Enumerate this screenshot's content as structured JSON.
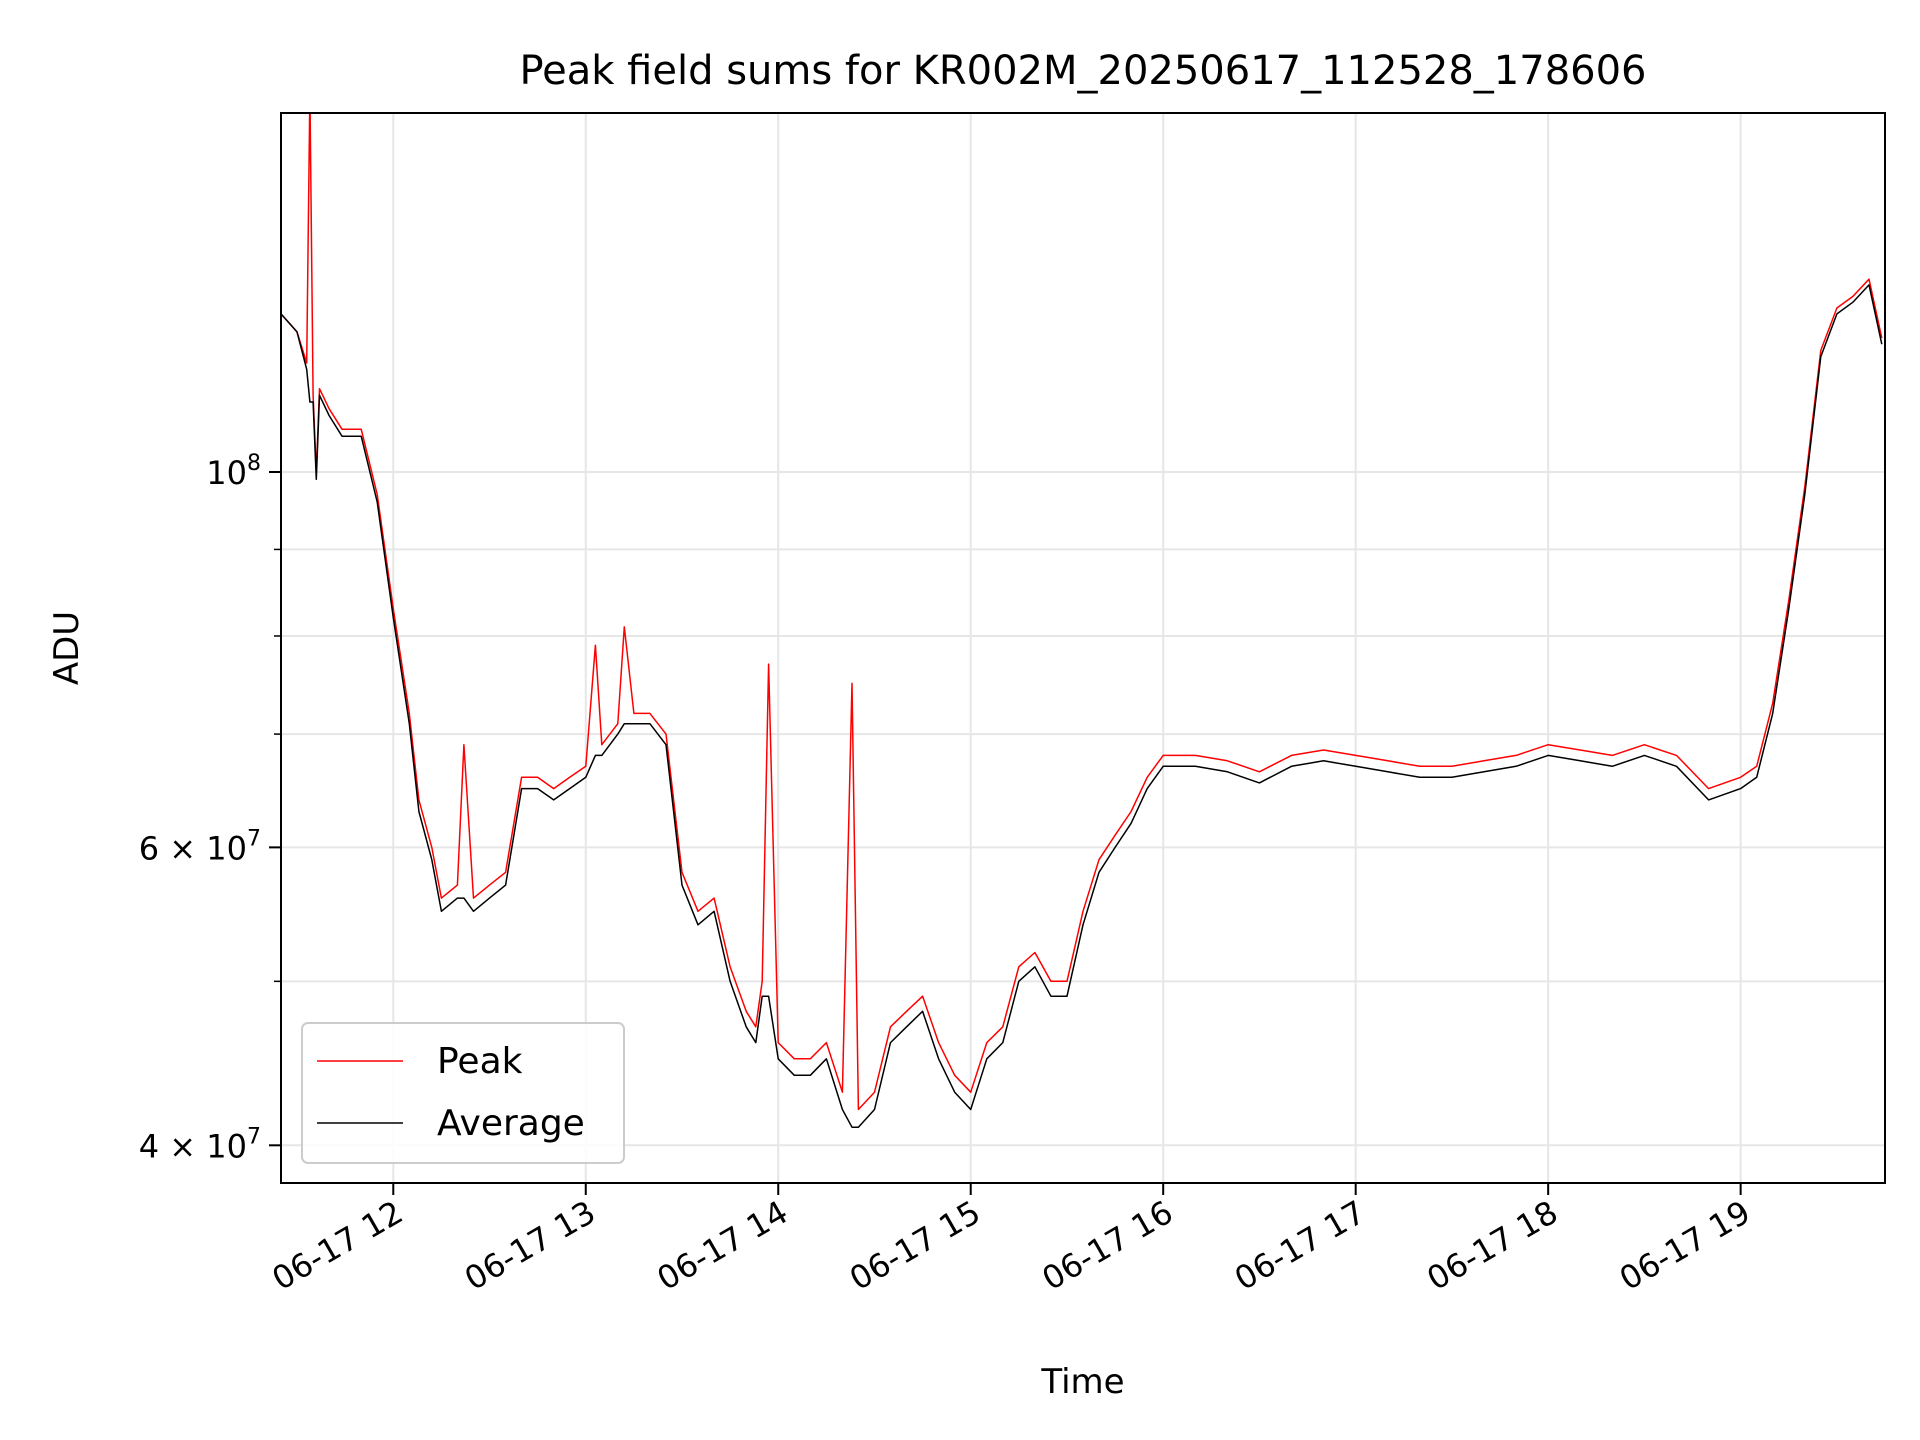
{
  "chart_data": {
    "type": "line",
    "title": "Peak field sums for KR002M_20250617_112528_178606",
    "xlabel": "Time",
    "ylabel": "ADU",
    "y_scale": "log",
    "grid": true,
    "legend_position": "lower-left",
    "xlim": [
      "2025-06-17T11:25",
      "2025-06-17T19:45"
    ],
    "ylim": [
      38000000,
      163000000
    ],
    "x_ticks": [
      {
        "time": "2025-06-17T12:00",
        "label": "06-17 12"
      },
      {
        "time": "2025-06-17T13:00",
        "label": "06-17 13"
      },
      {
        "time": "2025-06-17T14:00",
        "label": "06-17 14"
      },
      {
        "time": "2025-06-17T15:00",
        "label": "06-17 15"
      },
      {
        "time": "2025-06-17T16:00",
        "label": "06-17 16"
      },
      {
        "time": "2025-06-17T17:00",
        "label": "06-17 17"
      },
      {
        "time": "2025-06-17T18:00",
        "label": "06-17 18"
      },
      {
        "time": "2025-06-17T19:00",
        "label": "06-17 19"
      }
    ],
    "y_major_ticks": [
      {
        "value": 100000000,
        "base": "10",
        "exp": "8"
      },
      {
        "value": 60000000,
        "base": "6 × 10",
        "exp": "7"
      },
      {
        "value": 40000000,
        "base": "4 × 10",
        "exp": "7"
      }
    ],
    "y_minor_ticks": [
      50000000,
      70000000,
      80000000,
      90000000
    ],
    "series": [
      {
        "name": "Peak",
        "color": "#ff0000",
        "points": [
          [
            "2025-06-17T11:25",
            124000000
          ],
          [
            "2025-06-17T11:30",
            121000000
          ],
          [
            "2025-06-17T11:33",
            116000000
          ],
          [
            "2025-06-17T11:34",
            168000000
          ],
          [
            "2025-06-17T11:35",
            111000000
          ],
          [
            "2025-06-17T11:36",
            100000000
          ],
          [
            "2025-06-17T11:37",
            112000000
          ],
          [
            "2025-06-17T11:40",
            109000000
          ],
          [
            "2025-06-17T11:44",
            106000000
          ],
          [
            "2025-06-17T11:50",
            106000000
          ],
          [
            "2025-06-17T11:55",
            97000000
          ],
          [
            "2025-06-17T12:00",
            83000000
          ],
          [
            "2025-06-17T12:05",
            72000000
          ],
          [
            "2025-06-17T12:08",
            64000000
          ],
          [
            "2025-06-17T12:12",
            60000000
          ],
          [
            "2025-06-17T12:15",
            56000000
          ],
          [
            "2025-06-17T12:20",
            57000000
          ],
          [
            "2025-06-17T12:22",
            69000000
          ],
          [
            "2025-06-17T12:25",
            56000000
          ],
          [
            "2025-06-17T12:30",
            57000000
          ],
          [
            "2025-06-17T12:35",
            58000000
          ],
          [
            "2025-06-17T12:40",
            66000000
          ],
          [
            "2025-06-17T12:45",
            66000000
          ],
          [
            "2025-06-17T12:50",
            65000000
          ],
          [
            "2025-06-17T12:55",
            66000000
          ],
          [
            "2025-06-17T13:00",
            67000000
          ],
          [
            "2025-06-17T13:03",
            79000000
          ],
          [
            "2025-06-17T13:05",
            69000000
          ],
          [
            "2025-06-17T13:10",
            71000000
          ],
          [
            "2025-06-17T13:12",
            81000000
          ],
          [
            "2025-06-17T13:15",
            72000000
          ],
          [
            "2025-06-17T13:20",
            72000000
          ],
          [
            "2025-06-17T13:25",
            70000000
          ],
          [
            "2025-06-17T13:30",
            58000000
          ],
          [
            "2025-06-17T13:35",
            55000000
          ],
          [
            "2025-06-17T13:40",
            56000000
          ],
          [
            "2025-06-17T13:45",
            51000000
          ],
          [
            "2025-06-17T13:50",
            48000000
          ],
          [
            "2025-06-17T13:53",
            47000000
          ],
          [
            "2025-06-17T13:55",
            50000000
          ],
          [
            "2025-06-17T13:57",
            77000000
          ],
          [
            "2025-06-17T14:00",
            46000000
          ],
          [
            "2025-06-17T14:05",
            45000000
          ],
          [
            "2025-06-17T14:10",
            45000000
          ],
          [
            "2025-06-17T14:15",
            46000000
          ],
          [
            "2025-06-17T14:20",
            43000000
          ],
          [
            "2025-06-17T14:23",
            75000000
          ],
          [
            "2025-06-17T14:25",
            42000000
          ],
          [
            "2025-06-17T14:30",
            43000000
          ],
          [
            "2025-06-17T14:35",
            47000000
          ],
          [
            "2025-06-17T14:40",
            48000000
          ],
          [
            "2025-06-17T14:45",
            49000000
          ],
          [
            "2025-06-17T14:50",
            46000000
          ],
          [
            "2025-06-17T14:55",
            44000000
          ],
          [
            "2025-06-17T15:00",
            43000000
          ],
          [
            "2025-06-17T15:05",
            46000000
          ],
          [
            "2025-06-17T15:10",
            47000000
          ],
          [
            "2025-06-17T15:15",
            51000000
          ],
          [
            "2025-06-17T15:20",
            52000000
          ],
          [
            "2025-06-17T15:25",
            50000000
          ],
          [
            "2025-06-17T15:30",
            50000000
          ],
          [
            "2025-06-17T15:35",
            55000000
          ],
          [
            "2025-06-17T15:40",
            59000000
          ],
          [
            "2025-06-17T15:45",
            61000000
          ],
          [
            "2025-06-17T15:50",
            63000000
          ],
          [
            "2025-06-17T15:55",
            66000000
          ],
          [
            "2025-06-17T16:00",
            68000000
          ],
          [
            "2025-06-17T16:10",
            68000000
          ],
          [
            "2025-06-17T16:20",
            67500000
          ],
          [
            "2025-06-17T16:30",
            66500000
          ],
          [
            "2025-06-17T16:40",
            68000000
          ],
          [
            "2025-06-17T16:50",
            68500000
          ],
          [
            "2025-06-17T17:00",
            68000000
          ],
          [
            "2025-06-17T17:10",
            67500000
          ],
          [
            "2025-06-17T17:20",
            67000000
          ],
          [
            "2025-06-17T17:30",
            67000000
          ],
          [
            "2025-06-17T17:40",
            67500000
          ],
          [
            "2025-06-17T17:50",
            68000000
          ],
          [
            "2025-06-17T18:00",
            69000000
          ],
          [
            "2025-06-17T18:10",
            68500000
          ],
          [
            "2025-06-17T18:20",
            68000000
          ],
          [
            "2025-06-17T18:30",
            69000000
          ],
          [
            "2025-06-17T18:40",
            68000000
          ],
          [
            "2025-06-17T18:50",
            65000000
          ],
          [
            "2025-06-17T19:00",
            66000000
          ],
          [
            "2025-06-17T19:05",
            67000000
          ],
          [
            "2025-06-17T19:10",
            73000000
          ],
          [
            "2025-06-17T19:15",
            84000000
          ],
          [
            "2025-06-17T19:20",
            98000000
          ],
          [
            "2025-06-17T19:25",
            118000000
          ],
          [
            "2025-06-17T19:30",
            125000000
          ],
          [
            "2025-06-17T19:35",
            127000000
          ],
          [
            "2025-06-17T19:40",
            130000000
          ],
          [
            "2025-06-17T19:44",
            120000000
          ]
        ]
      },
      {
        "name": "Average",
        "color": "#000000",
        "points": [
          [
            "2025-06-17T11:25",
            124000000
          ],
          [
            "2025-06-17T11:30",
            121000000
          ],
          [
            "2025-06-17T11:33",
            115000000
          ],
          [
            "2025-06-17T11:34",
            110000000
          ],
          [
            "2025-06-17T11:35",
            110000000
          ],
          [
            "2025-06-17T11:36",
            99000000
          ],
          [
            "2025-06-17T11:37",
            111000000
          ],
          [
            "2025-06-17T11:40",
            108000000
          ],
          [
            "2025-06-17T11:44",
            105000000
          ],
          [
            "2025-06-17T11:50",
            105000000
          ],
          [
            "2025-06-17T11:55",
            96000000
          ],
          [
            "2025-06-17T12:00",
            82000000
          ],
          [
            "2025-06-17T12:05",
            71000000
          ],
          [
            "2025-06-17T12:08",
            63000000
          ],
          [
            "2025-06-17T12:12",
            59000000
          ],
          [
            "2025-06-17T12:15",
            55000000
          ],
          [
            "2025-06-17T12:20",
            56000000
          ],
          [
            "2025-06-17T12:22",
            56000000
          ],
          [
            "2025-06-17T12:25",
            55000000
          ],
          [
            "2025-06-17T12:30",
            56000000
          ],
          [
            "2025-06-17T12:35",
            57000000
          ],
          [
            "2025-06-17T12:40",
            65000000
          ],
          [
            "2025-06-17T12:45",
            65000000
          ],
          [
            "2025-06-17T12:50",
            64000000
          ],
          [
            "2025-06-17T12:55",
            65000000
          ],
          [
            "2025-06-17T13:00",
            66000000
          ],
          [
            "2025-06-17T13:03",
            68000000
          ],
          [
            "2025-06-17T13:05",
            68000000
          ],
          [
            "2025-06-17T13:10",
            70000000
          ],
          [
            "2025-06-17T13:12",
            71000000
          ],
          [
            "2025-06-17T13:15",
            71000000
          ],
          [
            "2025-06-17T13:20",
            71000000
          ],
          [
            "2025-06-17T13:25",
            69000000
          ],
          [
            "2025-06-17T13:30",
            57000000
          ],
          [
            "2025-06-17T13:35",
            54000000
          ],
          [
            "2025-06-17T13:40",
            55000000
          ],
          [
            "2025-06-17T13:45",
            50000000
          ],
          [
            "2025-06-17T13:50",
            47000000
          ],
          [
            "2025-06-17T13:53",
            46000000
          ],
          [
            "2025-06-17T13:55",
            49000000
          ],
          [
            "2025-06-17T13:57",
            49000000
          ],
          [
            "2025-06-17T14:00",
            45000000
          ],
          [
            "2025-06-17T14:05",
            44000000
          ],
          [
            "2025-06-17T14:10",
            44000000
          ],
          [
            "2025-06-17T14:15",
            45000000
          ],
          [
            "2025-06-17T14:20",
            42000000
          ],
          [
            "2025-06-17T14:23",
            41000000
          ],
          [
            "2025-06-17T14:25",
            41000000
          ],
          [
            "2025-06-17T14:30",
            42000000
          ],
          [
            "2025-06-17T14:35",
            46000000
          ],
          [
            "2025-06-17T14:40",
            47000000
          ],
          [
            "2025-06-17T14:45",
            48000000
          ],
          [
            "2025-06-17T14:50",
            45000000
          ],
          [
            "2025-06-17T14:55",
            43000000
          ],
          [
            "2025-06-17T15:00",
            42000000
          ],
          [
            "2025-06-17T15:05",
            45000000
          ],
          [
            "2025-06-17T15:10",
            46000000
          ],
          [
            "2025-06-17T15:15",
            50000000
          ],
          [
            "2025-06-17T15:20",
            51000000
          ],
          [
            "2025-06-17T15:25",
            49000000
          ],
          [
            "2025-06-17T15:30",
            49000000
          ],
          [
            "2025-06-17T15:35",
            54000000
          ],
          [
            "2025-06-17T15:40",
            58000000
          ],
          [
            "2025-06-17T15:45",
            60000000
          ],
          [
            "2025-06-17T15:50",
            62000000
          ],
          [
            "2025-06-17T15:55",
            65000000
          ],
          [
            "2025-06-17T16:00",
            67000000
          ],
          [
            "2025-06-17T16:10",
            67000000
          ],
          [
            "2025-06-17T16:20",
            66500000
          ],
          [
            "2025-06-17T16:30",
            65500000
          ],
          [
            "2025-06-17T16:40",
            67000000
          ],
          [
            "2025-06-17T16:50",
            67500000
          ],
          [
            "2025-06-17T17:00",
            67000000
          ],
          [
            "2025-06-17T17:10",
            66500000
          ],
          [
            "2025-06-17T17:20",
            66000000
          ],
          [
            "2025-06-17T17:30",
            66000000
          ],
          [
            "2025-06-17T17:40",
            66500000
          ],
          [
            "2025-06-17T17:50",
            67000000
          ],
          [
            "2025-06-17T18:00",
            68000000
          ],
          [
            "2025-06-17T18:10",
            67500000
          ],
          [
            "2025-06-17T18:20",
            67000000
          ],
          [
            "2025-06-17T18:30",
            68000000
          ],
          [
            "2025-06-17T18:40",
            67000000
          ],
          [
            "2025-06-17T18:50",
            64000000
          ],
          [
            "2025-06-17T19:00",
            65000000
          ],
          [
            "2025-06-17T19:05",
            66000000
          ],
          [
            "2025-06-17T19:10",
            72000000
          ],
          [
            "2025-06-17T19:15",
            83000000
          ],
          [
            "2025-06-17T19:20",
            97000000
          ],
          [
            "2025-06-17T19:25",
            117000000
          ],
          [
            "2025-06-17T19:30",
            124000000
          ],
          [
            "2025-06-17T19:35",
            126000000
          ],
          [
            "2025-06-17T19:40",
            129000000
          ],
          [
            "2025-06-17T19:44",
            119000000
          ]
        ]
      }
    ]
  }
}
